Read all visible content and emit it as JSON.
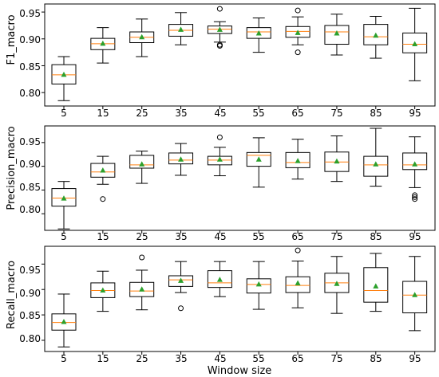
{
  "chart_data": [
    {
      "type": "box",
      "ylabel": "F1_macro",
      "ylim": [
        0.775,
        0.965
      ],
      "yticks": [
        "0.80",
        "0.85",
        "0.90",
        "0.95"
      ],
      "categories": [
        "5",
        "15",
        "25",
        "35",
        "45",
        "55",
        "65",
        "75",
        "85",
        "95"
      ],
      "boxes": [
        {
          "whisker_low": 0.785,
          "q1": 0.816,
          "median": 0.833,
          "q3": 0.852,
          "whisker_high": 0.867,
          "mean": 0.833,
          "outliers": []
        },
        {
          "whisker_low": 0.855,
          "q1": 0.88,
          "median": 0.891,
          "q3": 0.901,
          "whisker_high": 0.921,
          "mean": 0.891,
          "outliers": []
        },
        {
          "whisker_low": 0.867,
          "q1": 0.893,
          "median": 0.903,
          "q3": 0.913,
          "whisker_high": 0.937,
          "mean": 0.903,
          "outliers": []
        },
        {
          "whisker_low": 0.889,
          "q1": 0.905,
          "median": 0.916,
          "q3": 0.927,
          "whisker_high": 0.949,
          "mean": 0.917,
          "outliers": []
        },
        {
          "whisker_low": 0.894,
          "q1": 0.91,
          "median": 0.918,
          "q3": 0.924,
          "whisker_high": 0.932,
          "mean": 0.917,
          "outliers": [
            0.956,
            0.887,
            0.889
          ]
        },
        {
          "whisker_low": 0.875,
          "q1": 0.901,
          "median": 0.913,
          "q3": 0.921,
          "whisker_high": 0.939,
          "mean": 0.91,
          "outliers": []
        },
        {
          "whisker_low": 0.889,
          "q1": 0.903,
          "median": 0.914,
          "q3": 0.923,
          "whisker_high": 0.941,
          "mean": 0.911,
          "outliers": [
            0.953,
            0.875
          ]
        },
        {
          "whisker_low": 0.87,
          "q1": 0.89,
          "median": 0.913,
          "q3": 0.925,
          "whisker_high": 0.946,
          "mean": 0.91,
          "outliers": []
        },
        {
          "whisker_low": 0.864,
          "q1": 0.889,
          "median": 0.904,
          "q3": 0.927,
          "whisker_high": 0.942,
          "mean": 0.906,
          "outliers": []
        },
        {
          "whisker_low": 0.822,
          "q1": 0.874,
          "median": 0.89,
          "q3": 0.911,
          "whisker_high": 0.957,
          "mean": 0.89,
          "outliers": []
        }
      ]
    },
    {
      "type": "box",
      "ylabel": "Precision_macro",
      "ylim": [
        0.765,
        0.985
      ],
      "yticks": [
        "0.80",
        "0.85",
        "0.90",
        "0.95"
      ],
      "categories": [
        "5",
        "15",
        "25",
        "35",
        "45",
        "55",
        "65",
        "75",
        "85",
        "95"
      ],
      "boxes": [
        {
          "whisker_low": 0.768,
          "q1": 0.816,
          "median": 0.833,
          "q3": 0.853,
          "whisker_high": 0.868,
          "mean": 0.832,
          "outliers": []
        },
        {
          "whisker_low": 0.862,
          "q1": 0.877,
          "median": 0.888,
          "q3": 0.906,
          "whisker_high": 0.921,
          "mean": 0.891,
          "outliers": [
            0.831
          ]
        },
        {
          "whisker_low": 0.864,
          "q1": 0.896,
          "median": 0.903,
          "q3": 0.923,
          "whisker_high": 0.932,
          "mean": 0.904,
          "outliers": []
        },
        {
          "whisker_low": 0.881,
          "q1": 0.905,
          "median": 0.913,
          "q3": 0.928,
          "whisker_high": 0.948,
          "mean": 0.914,
          "outliers": []
        },
        {
          "whisker_low": 0.88,
          "q1": 0.903,
          "median": 0.913,
          "q3": 0.921,
          "whisker_high": 0.94,
          "mean": 0.914,
          "outliers": [
            0.961
          ]
        },
        {
          "whisker_low": 0.856,
          "q1": 0.9,
          "median": 0.923,
          "q3": 0.929,
          "whisker_high": 0.96,
          "mean": 0.914,
          "outliers": []
        },
        {
          "whisker_low": 0.873,
          "q1": 0.897,
          "median": 0.908,
          "q3": 0.929,
          "whisker_high": 0.957,
          "mean": 0.911,
          "outliers": []
        },
        {
          "whisker_low": 0.868,
          "q1": 0.889,
          "median": 0.909,
          "q3": 0.93,
          "whisker_high": 0.964,
          "mean": 0.91,
          "outliers": []
        },
        {
          "whisker_low": 0.858,
          "q1": 0.879,
          "median": 0.903,
          "q3": 0.921,
          "whisker_high": 0.98,
          "mean": 0.904,
          "outliers": []
        },
        {
          "whisker_low": 0.855,
          "q1": 0.893,
          "median": 0.903,
          "q3": 0.928,
          "whisker_high": 0.962,
          "mean": 0.904,
          "outliers": [
            0.839,
            0.835,
            0.831
          ]
        }
      ]
    },
    {
      "type": "box",
      "ylabel": "Recall_macro",
      "ylim": [
        0.778,
        0.985
      ],
      "yticks": [
        "0.80",
        "0.85",
        "0.90",
        "0.95"
      ],
      "xlabel": "Window size",
      "categories": [
        "5",
        "15",
        "25",
        "35",
        "45",
        "55",
        "65",
        "75",
        "85",
        "95"
      ],
      "boxes": [
        {
          "whisker_low": 0.787,
          "q1": 0.82,
          "median": 0.835,
          "q3": 0.852,
          "whisker_high": 0.891,
          "mean": 0.836,
          "outliers": []
        },
        {
          "whisker_low": 0.857,
          "q1": 0.884,
          "median": 0.898,
          "q3": 0.913,
          "whisker_high": 0.936,
          "mean": 0.898,
          "outliers": []
        },
        {
          "whisker_low": 0.86,
          "q1": 0.886,
          "median": 0.897,
          "q3": 0.914,
          "whisker_high": 0.938,
          "mean": 0.9,
          "outliers": [
            0.963
          ]
        },
        {
          "whisker_low": 0.894,
          "q1": 0.906,
          "median": 0.919,
          "q3": 0.927,
          "whisker_high": 0.955,
          "mean": 0.917,
          "outliers": [
            0.863
          ]
        },
        {
          "whisker_low": 0.886,
          "q1": 0.904,
          "median": 0.913,
          "q3": 0.937,
          "whisker_high": 0.955,
          "mean": 0.919,
          "outliers": []
        },
        {
          "whisker_low": 0.861,
          "q1": 0.893,
          "median": 0.91,
          "q3": 0.921,
          "whisker_high": 0.955,
          "mean": 0.91,
          "outliers": []
        },
        {
          "whisker_low": 0.864,
          "q1": 0.894,
          "median": 0.908,
          "q3": 0.925,
          "whisker_high": 0.956,
          "mean": 0.912,
          "outliers": [
            0.977
          ]
        },
        {
          "whisker_low": 0.853,
          "q1": 0.894,
          "median": 0.913,
          "q3": 0.932,
          "whisker_high": 0.965,
          "mean": 0.911,
          "outliers": []
        },
        {
          "whisker_low": 0.857,
          "q1": 0.875,
          "median": 0.898,
          "q3": 0.943,
          "whisker_high": 0.971,
          "mean": 0.906,
          "outliers": []
        },
        {
          "whisker_low": 0.819,
          "q1": 0.854,
          "median": 0.889,
          "q3": 0.916,
          "whisker_high": 0.965,
          "mean": 0.889,
          "outliers": []
        }
      ]
    }
  ],
  "colors": {
    "box": "#000000",
    "median": "#ff7f0e",
    "mean": "#2ca02c",
    "background": "#ffffff"
  }
}
